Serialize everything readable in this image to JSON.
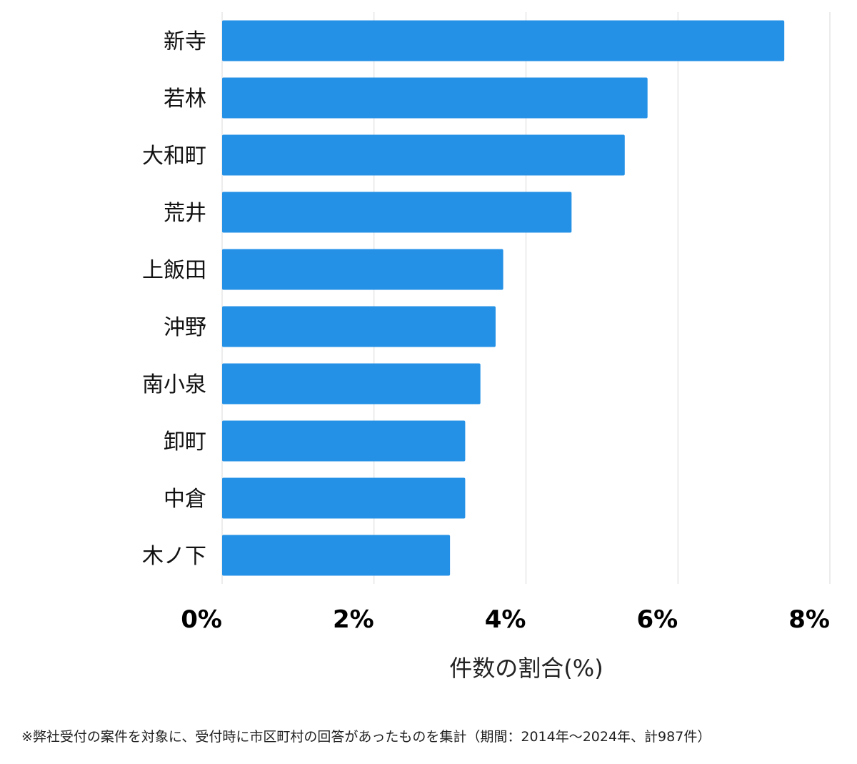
{
  "chart_data": {
    "type": "bar",
    "orientation": "horizontal",
    "categories": [
      "新寺",
      "若林",
      "大和町",
      "荒井",
      "上飯田",
      "沖野",
      "南小泉",
      "卸町",
      "中倉",
      "木ノ下"
    ],
    "values": [
      7.4,
      5.6,
      5.3,
      4.6,
      3.7,
      3.6,
      3.4,
      3.2,
      3.2,
      3.0
    ],
    "xlim": [
      0,
      8
    ],
    "xticks": [
      "0%",
      "2%",
      "4%",
      "6%",
      "8%"
    ],
    "xlabel": "件数の割合(%)",
    "grid": true,
    "bar_color": "#2491e6"
  },
  "footnote": "※弊社受付の案件を対象に、受付時に市区町村の回答があったものを集計（期間：2014年～2024年、計987件）"
}
